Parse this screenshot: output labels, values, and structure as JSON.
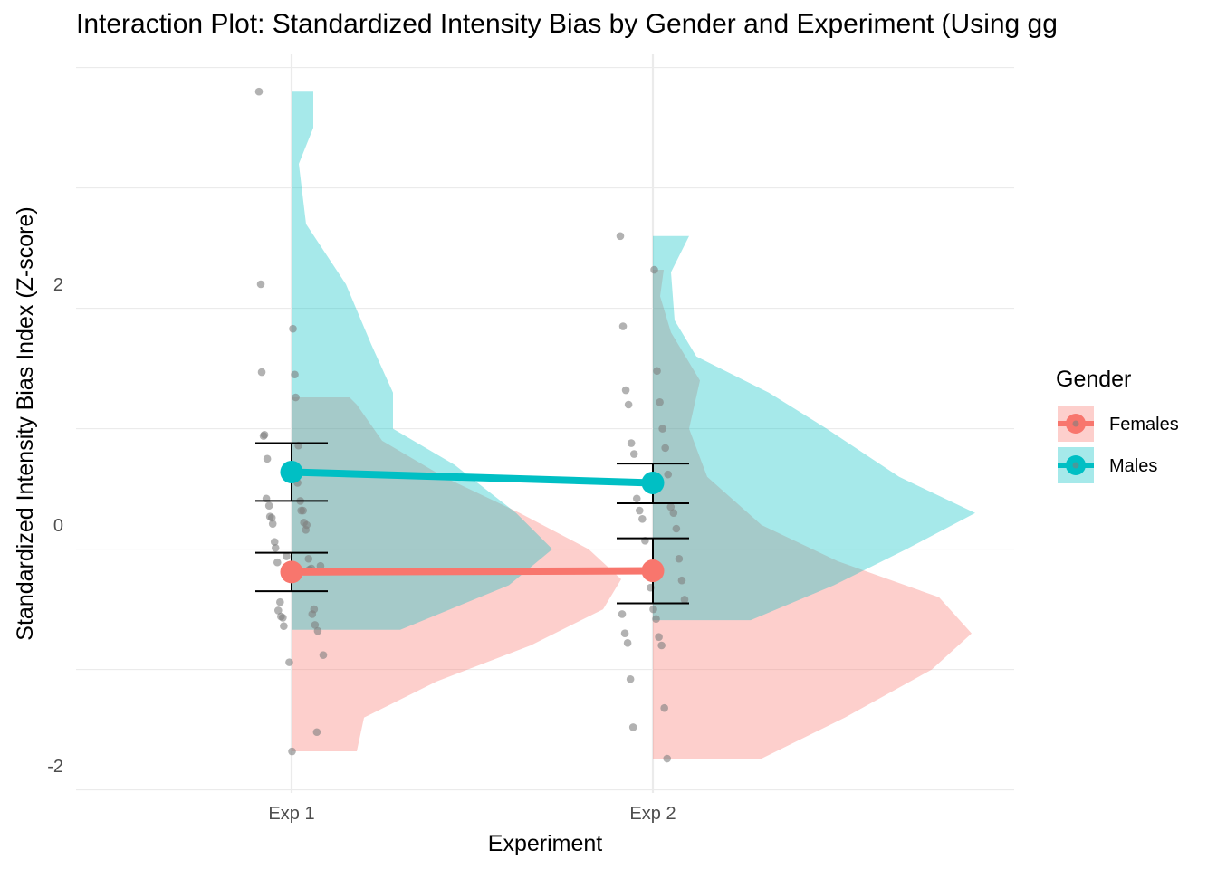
{
  "chart_data": {
    "type": "interaction-raincloud",
    "title": "Interaction Plot: Standardized Intensity Bias by Gender and Experiment (Using gg",
    "xlabel": "Experiment",
    "ylabel": "Standardized Intensity Bias Index (Z-score)",
    "categories": [
      "Exp 1",
      "Exp 2"
    ],
    "ylim": [
      -2.2,
      3.9
    ],
    "yticks": [
      -2,
      0,
      2
    ],
    "ytick_labels": [
      "-2",
      "0",
      "2"
    ],
    "grid": true,
    "legend": {
      "title": "Gender",
      "placement": "right",
      "entries": [
        {
          "label": "Females",
          "color": "#F8766D"
        },
        {
          "label": "Males",
          "color": "#00BFC4"
        }
      ]
    },
    "series": [
      {
        "name": "Females",
        "color": "#F8766D",
        "means": [
          -0.39,
          -0.38
        ],
        "ci_low": [
          -0.55,
          -0.65
        ],
        "ci_high": [
          -0.23,
          -0.11
        ],
        "density": [
          {
            "range": [
              -1.88,
              1.06
            ],
            "profile": [
              [
                -1.88,
                0.18
              ],
              [
                -1.6,
                0.2
              ],
              [
                -1.3,
                0.4
              ],
              [
                -1.0,
                0.66
              ],
              [
                -0.7,
                0.86
              ],
              [
                -0.45,
                0.91
              ],
              [
                -0.2,
                0.82
              ],
              [
                0.1,
                0.63
              ],
              [
                0.4,
                0.42
              ],
              [
                0.7,
                0.25
              ],
              [
                1.0,
                0.18
              ],
              [
                1.06,
                0.16
              ]
            ]
          },
          {
            "range": [
              -1.94,
              2.12
            ],
            "profile": [
              [
                -1.94,
                0.3
              ],
              [
                -1.6,
                0.53
              ],
              [
                -1.2,
                0.77
              ],
              [
                -0.9,
                0.88
              ],
              [
                -0.6,
                0.79
              ],
              [
                -0.3,
                0.51
              ],
              [
                0.0,
                0.3
              ],
              [
                0.4,
                0.15
              ],
              [
                0.8,
                0.1
              ],
              [
                1.2,
                0.13
              ],
              [
                1.6,
                0.05
              ],
              [
                1.9,
                0.02
              ],
              [
                2.12,
                0.03
              ]
            ]
          }
        ]
      },
      {
        "name": "Males",
        "color": "#00BFC4",
        "means": [
          0.44,
          0.35
        ],
        "ci_low": [
          0.2,
          0.18
        ],
        "ci_high": [
          0.68,
          0.51
        ],
        "density": [
          {
            "range": [
              -0.87,
              3.6
            ],
            "profile": [
              [
                -0.87,
                0.3
              ],
              [
                -0.5,
                0.6
              ],
              [
                -0.2,
                0.72
              ],
              [
                0.1,
                0.62
              ],
              [
                0.5,
                0.45
              ],
              [
                0.8,
                0.28
              ],
              [
                1.1,
                0.28
              ],
              [
                1.5,
                0.22
              ],
              [
                2.0,
                0.15
              ],
              [
                2.5,
                0.04
              ],
              [
                3.0,
                0.02
              ],
              [
                3.3,
                0.06
              ],
              [
                3.6,
                0.06
              ]
            ]
          },
          {
            "range": [
              -0.79,
              2.4
            ],
            "profile": [
              [
                -0.79,
                0.27
              ],
              [
                -0.5,
                0.5
              ],
              [
                -0.2,
                0.7
              ],
              [
                0.1,
                0.89
              ],
              [
                0.4,
                0.68
              ],
              [
                0.8,
                0.48
              ],
              [
                1.1,
                0.32
              ],
              [
                1.4,
                0.12
              ],
              [
                1.7,
                0.06
              ],
              [
                2.1,
                0.05
              ],
              [
                2.4,
                0.1
              ]
            ]
          }
        ]
      }
    ],
    "points": [
      {
        "x": "Exp 1",
        "y": [
          3.6,
          1.63,
          1.27,
          1.06,
          0.75,
          0.66,
          0.55,
          0.12,
          0.07,
          0.02,
          0.01,
          0.0,
          -0.19,
          -0.37,
          -0.71,
          -0.74,
          -0.76,
          -0.83,
          -0.84,
          -0.88,
          -0.26,
          -0.34,
          -1.14,
          -1.08,
          -1.88,
          2.0,
          1.25,
          0.74,
          0.35,
          0.22,
          0.2,
          0.16,
          0.12,
          0.06,
          -0.04,
          -0.14,
          -0.28,
          -0.31,
          -0.36,
          -0.64,
          -0.7,
          -0.77,
          -1.72
        ]
      },
      {
        "x": "Exp 2",
        "y": [
          2.4,
          2.12,
          1.65,
          1.28,
          1.12,
          1.02,
          1.0,
          0.8,
          0.68,
          0.64,
          0.59,
          0.42,
          0.22,
          0.15,
          0.12,
          0.1,
          0.05,
          -0.03,
          -0.13,
          -0.28,
          -0.38,
          -0.46,
          -0.52,
          -0.62,
          -0.7,
          -0.74,
          -0.78,
          -0.9,
          -0.93,
          -0.98,
          -1.0,
          -1.28,
          -1.52,
          -1.68,
          -1.94
        ]
      }
    ]
  }
}
